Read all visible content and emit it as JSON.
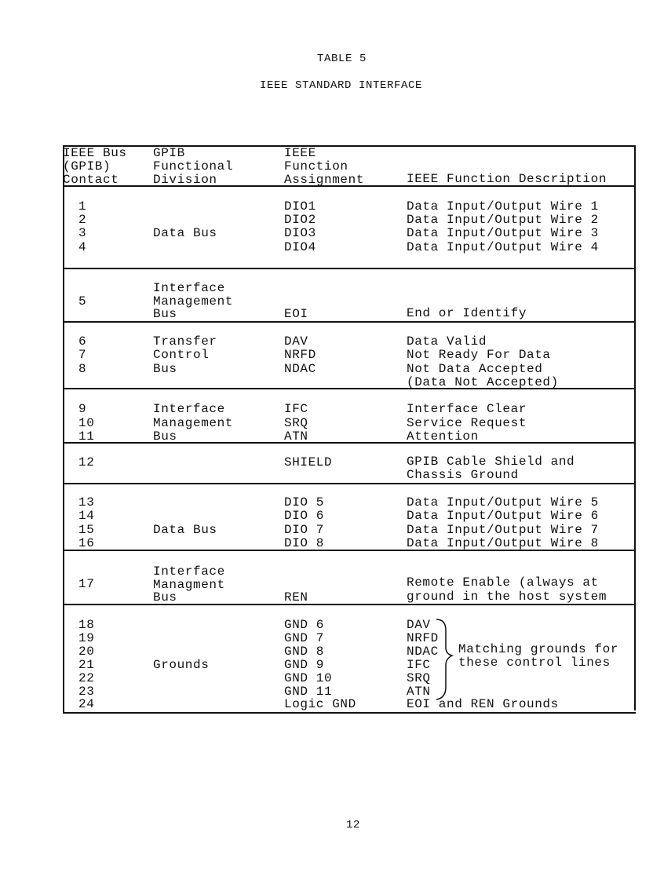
{
  "title": "TABLE 5",
  "subtitle": "IEEE STANDARD INTERFACE",
  "header": {
    "contact": [
      "IEEE Bus",
      "(GPIB)",
      "Contact"
    ],
    "division": [
      "GPIB",
      "Functional",
      "Division"
    ],
    "assignment": [
      "IEEE",
      "Function",
      "Assignment"
    ],
    "description": "IEEE Function Description"
  },
  "groups": [
    {
      "division": [
        "Data Bus"
      ],
      "rows": [
        {
          "contact": "1",
          "assignment": "DIO1",
          "description": "Data Input/Output Wire 1"
        },
        {
          "contact": "2",
          "assignment": "DIO2",
          "description": "Data Input/Output Wire 2"
        },
        {
          "contact": "3",
          "assignment": "DIO3",
          "description": "Data Input/Output Wire 3"
        },
        {
          "contact": "4",
          "assignment": "DIO4",
          "description": "Data Input/Output Wire 4"
        }
      ]
    },
    {
      "division": [
        "Interface",
        "Management",
        "Bus"
      ],
      "rows": [
        {
          "contact": "5",
          "assignment": "EOI",
          "description": "End or Identify"
        }
      ]
    },
    {
      "division": [
        "Transfer",
        "Control",
        "Bus"
      ],
      "rows": [
        {
          "contact": "6",
          "assignment": "DAV",
          "description": "Data Valid"
        },
        {
          "contact": "7",
          "assignment": "NRFD",
          "description": "Not Ready For Data"
        },
        {
          "contact": "8",
          "assignment": "NDAC",
          "description": "Not Data Accepted",
          "description2": "(Data Not Accepted)"
        }
      ]
    },
    {
      "division": [
        "Interface",
        "Management",
        "Bus"
      ],
      "rows": [
        {
          "contact": "9",
          "assignment": "IFC",
          "description": "Interface Clear"
        },
        {
          "contact": "10",
          "assignment": "SRQ",
          "description": "Service Request"
        },
        {
          "contact": "11",
          "assignment": "ATN",
          "description": "Attention"
        }
      ]
    },
    {
      "division": [],
      "rows": [
        {
          "contact": "12",
          "assignment": "SHIELD",
          "description": "GPIB Cable Shield and",
          "description2": "Chassis Ground"
        }
      ]
    },
    {
      "division": [
        "Data Bus"
      ],
      "rows": [
        {
          "contact": "13",
          "assignment": "DIO 5",
          "description": "Data Input/Output Wire 5"
        },
        {
          "contact": "14",
          "assignment": "DIO 6",
          "description": "Data Input/Output Wire 6"
        },
        {
          "contact": "15",
          "assignment": "DIO 7",
          "description": "Data Input/Output Wire 7"
        },
        {
          "contact": "16",
          "assignment": "DIO 8",
          "description": "Data Input/Output Wire 8"
        }
      ]
    },
    {
      "division": [
        "Interface",
        "Managment",
        "Bus"
      ],
      "rows": [
        {
          "contact": "17",
          "assignment": "REN",
          "description": "Remote Enable (always at",
          "description2": "ground in the host system"
        }
      ]
    },
    {
      "division": [
        "Grounds"
      ],
      "note": [
        "Matching grounds for",
        "these control lines"
      ],
      "rows": [
        {
          "contact": "18",
          "assignment": "GND 6",
          "description": "DAV"
        },
        {
          "contact": "19",
          "assignment": "GND 7",
          "description": "NRFD"
        },
        {
          "contact": "20",
          "assignment": "GND 8",
          "description": "NDAC"
        },
        {
          "contact": "21",
          "assignment": "GND 9",
          "description": "IFC"
        },
        {
          "contact": "22",
          "assignment": "GND 10",
          "description": "SRQ"
        },
        {
          "contact": "23",
          "assignment": "GND 11",
          "description": "ATN"
        },
        {
          "contact": "24",
          "assignment": "Logic GND",
          "description": "EOI and REN Grounds"
        }
      ]
    }
  ],
  "page_number": "12"
}
